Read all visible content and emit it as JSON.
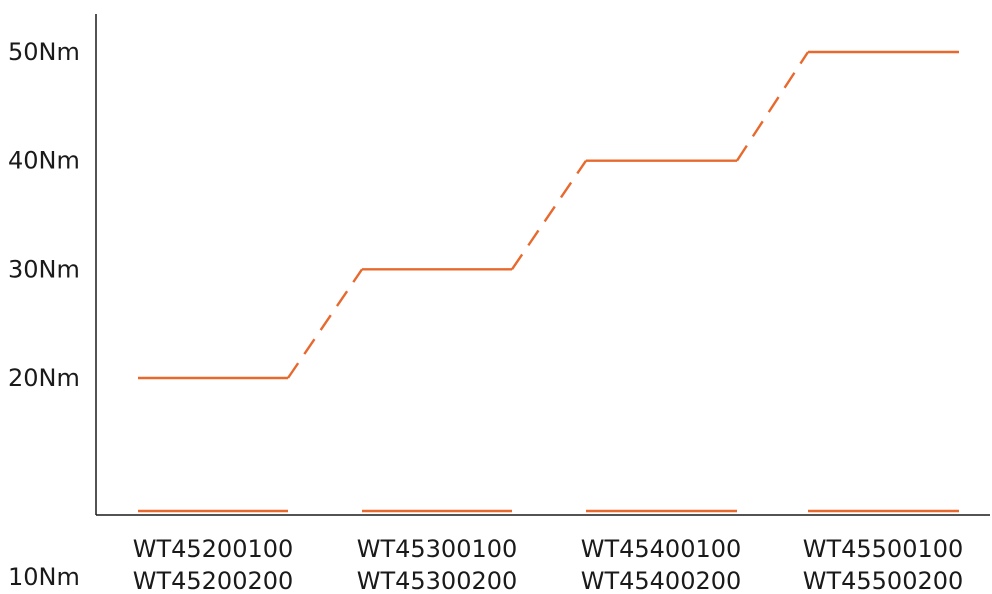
{
  "chart_data": {
    "type": "line",
    "title": "",
    "xlabel": "",
    "ylabel": "",
    "categories": [
      [
        "WT45200100",
        "WT45200200"
      ],
      [
        "WT45300100",
        "WT45300200"
      ],
      [
        "WT45400100",
        "WT45400200"
      ],
      [
        "WT45500100",
        "WT45500200"
      ]
    ],
    "y_ticks": [
      {
        "value": 10,
        "label": "10Nm"
      },
      {
        "value": 20,
        "label": "20Nm"
      },
      {
        "value": 30,
        "label": "30Nm"
      },
      {
        "value": 40,
        "label": "40Nm"
      },
      {
        "value": 50,
        "label": "50Nm"
      }
    ],
    "series": [
      {
        "values": [
          20,
          30,
          40,
          50
        ]
      }
    ],
    "baseline_values": [
      10,
      10,
      10,
      10
    ],
    "ylim": [
      10,
      50
    ],
    "grid": false,
    "legend": "none",
    "color": "#e8692e"
  }
}
